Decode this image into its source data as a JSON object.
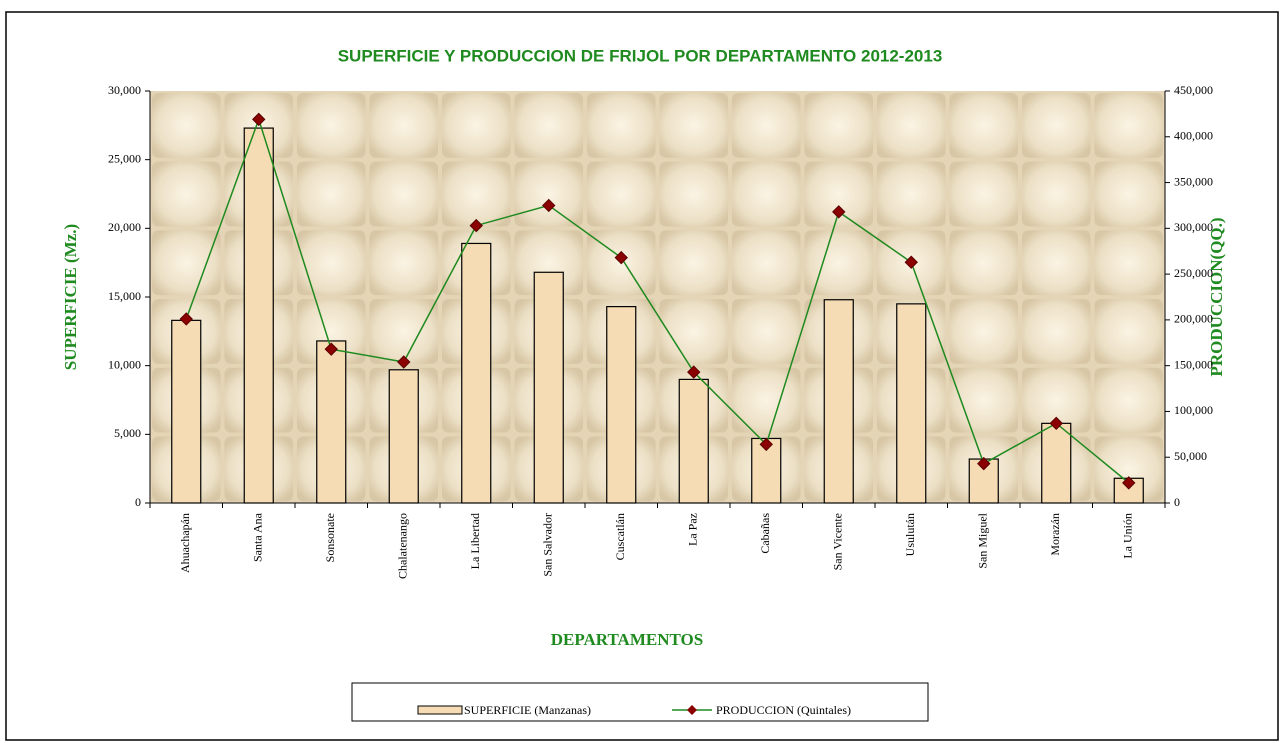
{
  "chart_data": {
    "type": "bar_line",
    "title": "SUPERFICIE Y PRODUCCION DE FRIJOL POR DEPARTAMENTO 2012-2013",
    "x_label": "DEPARTAMENTOS",
    "y_label": "SUPERFICIE (Mz.)",
    "y2_label": "PRODUCCION(QQ.)",
    "categories": [
      "Ahuachapán",
      "Santa Ana",
      "Sonsonate",
      "Chalatenango",
      "La Libertad",
      "San Salvador",
      "Cuscatlán",
      "La Paz",
      "Cabañas",
      "San Vicente",
      "Usulután",
      "San Miguel",
      "Morazán",
      "La Unión"
    ],
    "series": [
      {
        "name": "SUPERFICIE (Manzanas)",
        "type": "bar",
        "color": "#f6dcb4",
        "values": [
          13300,
          27300,
          11800,
          9700,
          18900,
          16800,
          14300,
          9000,
          4700,
          14800,
          14500,
          3200,
          5800,
          1800
        ]
      },
      {
        "name": "PRODUCCION (Quintales)",
        "type": "line",
        "axis": "y2",
        "color": "#1f8a1f",
        "marker_color": "#8b0000",
        "values": [
          201000,
          419000,
          168000,
          154000,
          303000,
          325000,
          268000,
          143000,
          64000,
          318000,
          263000,
          43000,
          87000,
          22000
        ]
      }
    ],
    "ylim": [
      0,
      30000
    ],
    "yticks": [
      0,
      {
        "value": 5000,
        "label": "5,000"
      },
      {
        "value": 10000,
        "label": "10,000"
      },
      {
        "value": 15000,
        "label": "15,000"
      },
      {
        "value": 20000,
        "label": "20,000"
      },
      {
        "value": 25000,
        "label": "25,000"
      },
      {
        "value": 30000,
        "label": "30,000"
      }
    ],
    "y2lim": [
      0,
      450000
    ],
    "y2ticks": [
      0,
      {
        "value": 50000,
        "label": "50,000"
      },
      {
        "value": 100000,
        "label": "100,000"
      },
      {
        "value": 150000,
        "label": "150,000"
      },
      {
        "value": 200000,
        "label": "200,000"
      },
      {
        "value": 250000,
        "label": "250,000"
      },
      {
        "value": 300000,
        "label": "300,000"
      },
      {
        "value": 350000,
        "label": "350,000"
      },
      {
        "value": 400000,
        "label": "400,000"
      },
      {
        "value": 450000,
        "label": "450,000"
      }
    ],
    "legend": "bottom"
  }
}
